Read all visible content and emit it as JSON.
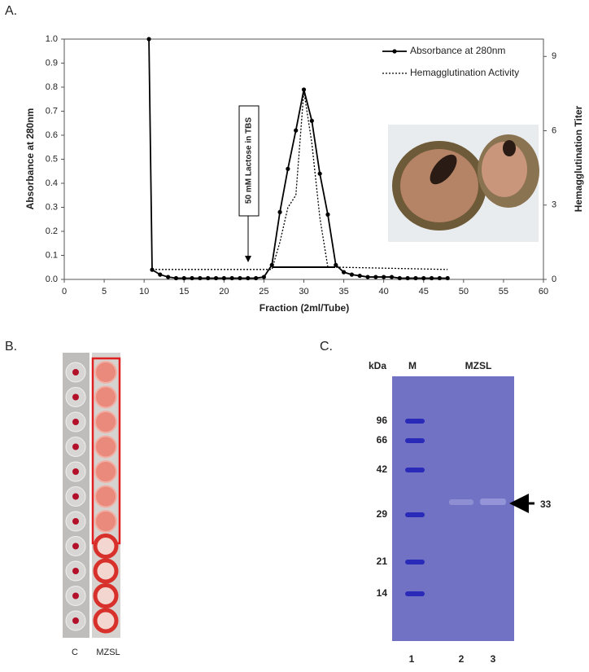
{
  "panel_labels": [
    "A.",
    "B.",
    "C."
  ],
  "chart_data": {
    "type": "line",
    "x_label": "Fraction (2ml/Tube)",
    "y_label": "Absorbance at 280nm",
    "y2_label": "Hemagglutination Titer",
    "annotation": "50 mM Lactose in TBS",
    "xlim": [
      0,
      60
    ],
    "xticks": [
      0,
      5,
      10,
      15,
      20,
      25,
      30,
      35,
      40,
      45,
      50,
      55,
      60
    ],
    "ylim": [
      0,
      1
    ],
    "yticks": [
      {
        "value": 0,
        "label": "0.0"
      },
      0.1,
      0.2,
      0.3,
      0.4,
      0.5,
      0.6,
      0.7,
      0.8,
      0.9,
      {
        "value": 1,
        "label": "1.0"
      }
    ],
    "y2lim": [
      0,
      9.7
    ],
    "y2ticks": [
      0,
      3,
      6,
      9
    ],
    "legend": "upper right",
    "series": [
      {
        "name": "Absorbance at 280nm",
        "color": "#000000",
        "dash": "solid",
        "marker": true,
        "x": [
          10.6,
          11,
          12,
          13,
          14,
          15,
          16,
          17,
          18,
          19,
          20,
          21,
          22,
          23,
          24,
          25,
          26,
          27,
          28,
          29,
          30,
          31,
          32,
          33,
          34,
          35,
          36,
          37,
          38,
          39,
          40,
          41,
          42,
          43,
          44,
          45,
          46,
          47,
          48
        ],
        "values": [
          1.0,
          0.04,
          0.02,
          0.01,
          0.005,
          0.005,
          0.005,
          0.005,
          0.005,
          0.005,
          0.005,
          0.005,
          0.005,
          0.005,
          0.005,
          0.01,
          0.06,
          0.28,
          0.46,
          0.62,
          0.79,
          0.66,
          0.44,
          0.27,
          0.06,
          0.03,
          0.02,
          0.015,
          0.01,
          0.01,
          0.01,
          0.01,
          0.005,
          0.005,
          0.005,
          0.005,
          0.005,
          0.005,
          0.005
        ]
      },
      {
        "name": "Hemagglutination Activity",
        "color": "#000000",
        "dash": "dotted",
        "marker": false,
        "axis": "y2",
        "x": [
          11,
          26,
          27,
          28,
          29,
          30,
          31,
          32,
          33,
          48
        ],
        "values": [
          0.4,
          0.4,
          1.5,
          2.9,
          3.4,
          7.6,
          5.5,
          2.5,
          0.5,
          0.4
        ]
      }
    ]
  },
  "panel_b": {
    "lanes": [
      "C",
      "MZSL"
    ]
  },
  "panel_c": {
    "unit": "kDa",
    "marker_lane": "M",
    "sample_label": "MZSL",
    "marker_sizes": [
      96,
      66,
      42,
      29,
      21,
      14
    ],
    "band": 33,
    "lane_numbers": [
      1,
      2,
      3
    ]
  }
}
